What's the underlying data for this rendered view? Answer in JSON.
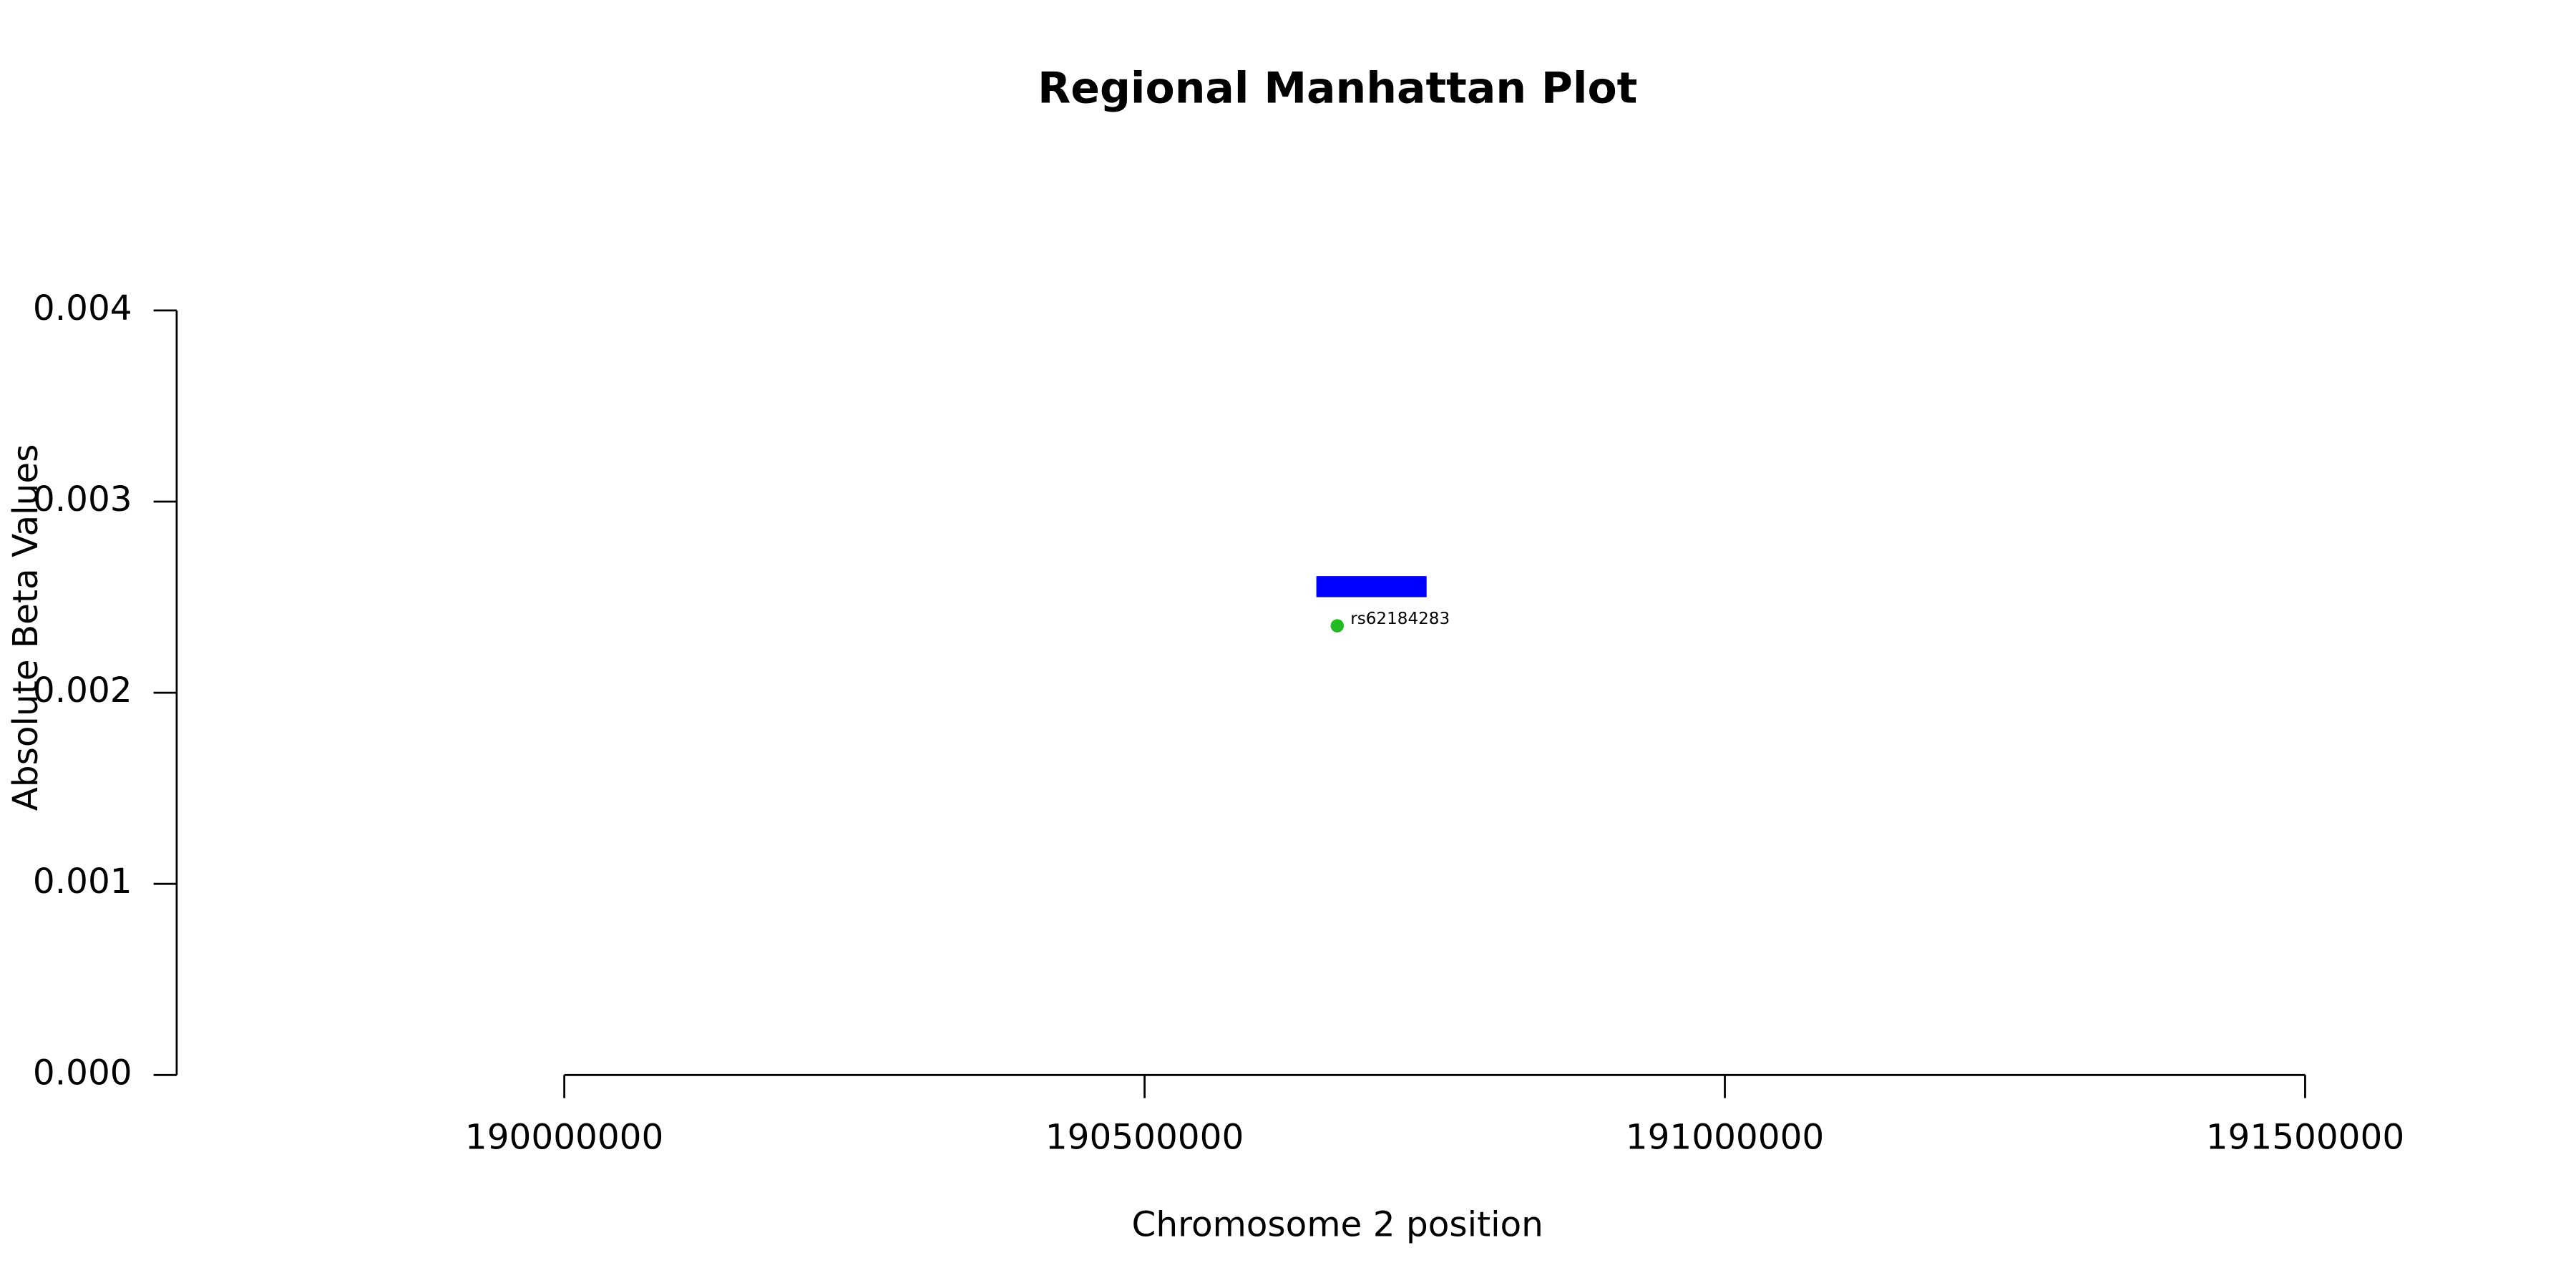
{
  "chart_data": {
    "type": "scatter",
    "title": "Regional Manhattan Plot",
    "x_label": "Chromosome 2 position",
    "y_label": "Absolute Beta Values",
    "x": [
      190666000
    ],
    "series": [
      {
        "color": "#22bb22",
        "values": [
          0.00235
        ],
        "point_labels": [
          "rs62184283"
        ]
      }
    ],
    "gene": {
      "start": 190648000,
      "end": 190743000,
      "ymin": 0.0025,
      "ymax": 0.00261,
      "color": "#0000ff"
    },
    "xlim": [
      189666000,
      191584000
    ],
    "xticks": [
      190000000,
      190500000,
      191000000,
      191500000
    ],
    "ylim": [
      0,
      0.004
    ],
    "yticks": [
      {
        "value": 0,
        "label": "0.000"
      },
      0.001,
      0.002,
      0.003,
      0.004
    ]
  }
}
